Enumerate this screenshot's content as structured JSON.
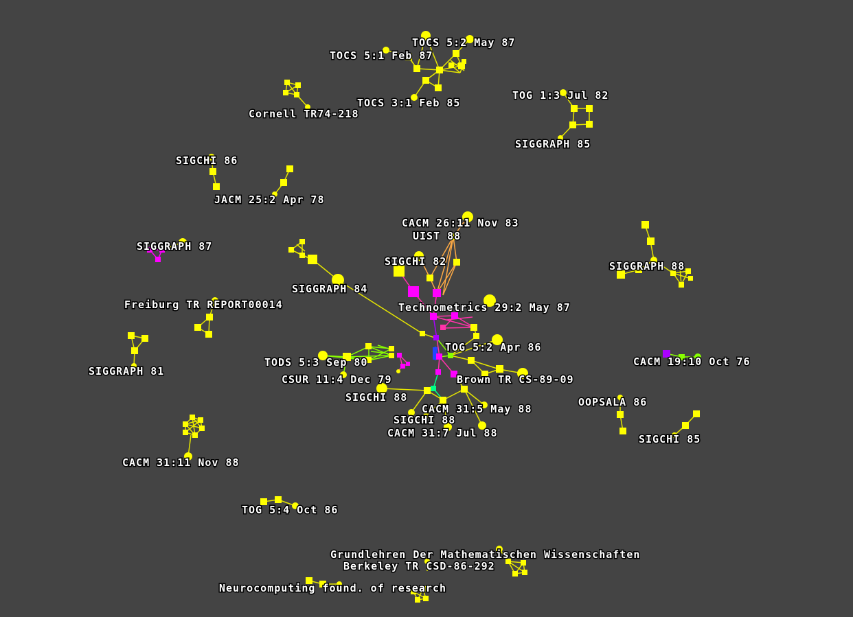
{
  "colors": {
    "background": "#444444",
    "node_yellow": "#ffff00",
    "node_magenta": "#ff00ff",
    "node_purple": "#aa00ff",
    "node_blue": "#0000ff",
    "edge_yellow": "#e6e600",
    "edge_green": "#88ff00",
    "edge_magenta": "#ff33aa",
    "edge_orange": "#ffaa44",
    "edge_teal": "#00ff88",
    "label_text": "#ffffff"
  },
  "labels": {
    "tocs_5_2": "TOCS 5:2 May 87",
    "tocs_5_1": "TOCS 5:1 Feb 87",
    "tocs_3_1": "TOCS 3:1 Feb 85",
    "cornell": "Cornell TR74-218",
    "tog_1_3": "TOG 1:3 Jul 82",
    "siggraph_85": "SIGGRAPH 85",
    "sigchi_86": "SIGCHI 86",
    "jacm": "JACM 25:2 Apr 78",
    "cacm_26_11": "CACM 26:11 Nov 83",
    "uist_88": "UIST 88",
    "siggraph_87": "SIGGRAPH 87",
    "sigchi_82": "SIGCHI 82",
    "siggraph_88": "SIGGRAPH 88",
    "siggraph_84": "SIGGRAPH 84",
    "freiburg": "Freiburg TR REPORT00014",
    "technometrics": "Technometrics 29:2 May 87",
    "tog_5_2": "TOG 5:2 Apr 86",
    "cacm_19_10": "CACM 19:10 Oct 76",
    "tods": "TODS 5:3 Sep 80",
    "siggraph_81": "SIGGRAPH 81",
    "csur": "CSUR 11:4 Dec 79",
    "brown": "Brown TR CS-89-09",
    "sigchi_88a": "SIGCHI 88",
    "oopsala": "OOPSALA 86",
    "cacm_31_5": "CACM 31:5 May 88",
    "sigchi_88b": "SIGCHI 88",
    "sigchi_85": "SIGCHI 85",
    "cacm_31_7": "CACM 31:7 Jul 88",
    "cacm_31_11": "CACM 31:11 Nov 88",
    "tog_5_4": "TOG 5:4 Oct 86",
    "grundlehren": "Grundlehren Der Mathematischen Wissenschaften",
    "berkeley": "Berkeley TR CSD-86-292",
    "neurocomputing": "Neurocomputing found. of research"
  }
}
